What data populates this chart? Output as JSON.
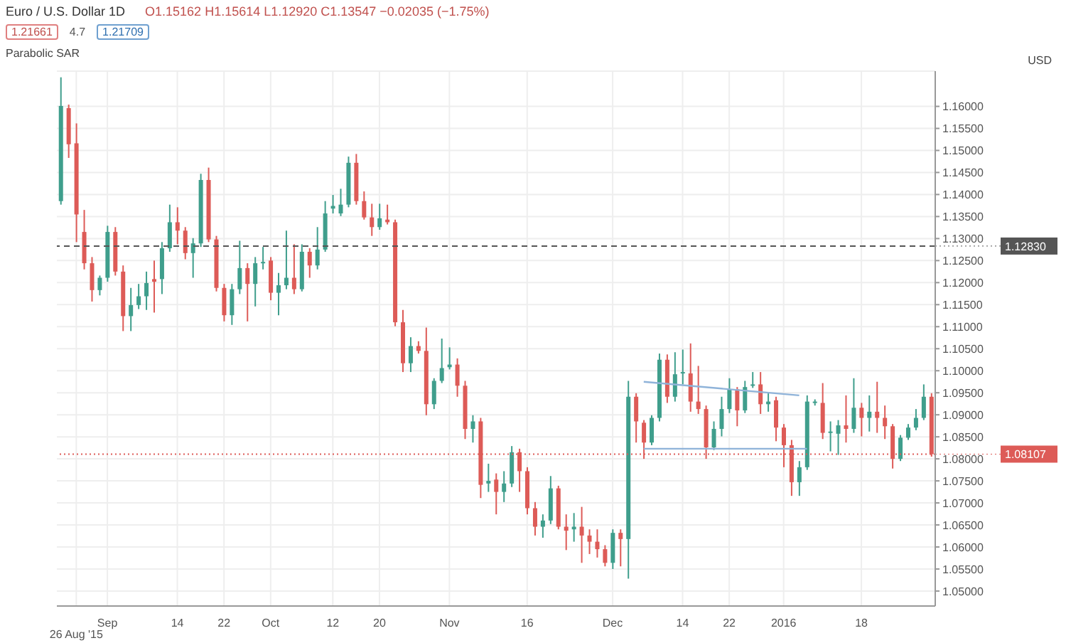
{
  "chart_data": {
    "type": "candlestick",
    "title": "Euro / U.S. Dollar  1D",
    "subtitle": "O1.15162 H1.15614 L1.12920 C1.13547 −0.02035 (−1.75%)",
    "annotations": [
      "1.21661",
      "4.7",
      "1.21709",
      "Parabolic SAR"
    ],
    "ylabel": "USD",
    "categories": [
      null,
      null,
      "26 Aug '15",
      null,
      null,
      null,
      "Sep",
      null,
      null,
      null,
      null,
      null,
      null,
      null,
      null,
      "14",
      null,
      null,
      null,
      null,
      null,
      "22",
      null,
      null,
      null,
      null,
      null,
      "Oct",
      null,
      null,
      null,
      null,
      null,
      null,
      null,
      "12",
      null,
      null,
      null,
      null,
      null,
      "20",
      null,
      null,
      null,
      null,
      null,
      null,
      null,
      null,
      "Nov",
      null,
      null,
      null,
      null,
      null,
      null,
      null,
      null,
      null,
      "16",
      null,
      null,
      null,
      null,
      null,
      null,
      null,
      null,
      null,
      null,
      "Dec",
      null,
      null,
      null,
      null,
      null,
      null,
      null,
      null,
      "14",
      null,
      null,
      null,
      null,
      null,
      "22",
      null,
      null,
      null,
      null,
      null,
      null,
      "2016",
      null,
      null,
      null,
      null,
      null,
      null,
      null,
      null,
      null,
      "18",
      null,
      null,
      null,
      null,
      null,
      null,
      null,
      null,
      null
    ],
    "ohlc": [
      [
        1.1385,
        1.1666,
        1.1377,
        1.1601
      ],
      [
        1.1596,
        1.1604,
        1.1483,
        1.1514
      ],
      [
        1.15162,
        1.15614,
        1.1292,
        1.13547
      ],
      [
        1.1315,
        1.1365,
        1.123,
        1.1244
      ],
      [
        1.1244,
        1.1258,
        1.1157,
        1.1183
      ],
      [
        1.1183,
        1.1216,
        1.1171,
        1.1211
      ],
      [
        1.1211,
        1.1329,
        1.1202,
        1.1315
      ],
      [
        1.1315,
        1.1326,
        1.1216,
        1.1225
      ],
      [
        1.1225,
        1.1239,
        1.109,
        1.1124
      ],
      [
        1.1124,
        1.1188,
        1.109,
        1.1149
      ],
      [
        1.1149,
        1.1197,
        1.114,
        1.1169
      ],
      [
        1.1169,
        1.1225,
        1.1138,
        1.1199
      ],
      [
        1.1208,
        1.125,
        1.1132,
        1.1202
      ],
      [
        1.1208,
        1.1292,
        1.1174,
        1.1278
      ],
      [
        1.1278,
        1.1377,
        1.127,
        1.1337
      ],
      [
        1.1337,
        1.1371,
        1.1287,
        1.1318
      ],
      [
        1.1318,
        1.1326,
        1.1253,
        1.1267
      ],
      [
        1.1267,
        1.1301,
        1.1211,
        1.1289
      ],
      [
        1.1289,
        1.1447,
        1.1281,
        1.1433
      ],
      [
        1.1433,
        1.1461,
        1.1292,
        1.1298
      ],
      [
        1.1298,
        1.1306,
        1.118,
        1.1188
      ],
      [
        1.1188,
        1.1197,
        1.1112,
        1.1126
      ],
      [
        1.1126,
        1.1197,
        1.1104,
        1.1185
      ],
      [
        1.1185,
        1.1295,
        1.1174,
        1.1233
      ],
      [
        1.1233,
        1.1244,
        1.1112,
        1.1197
      ],
      [
        1.1197,
        1.1258,
        1.1146,
        1.1244
      ],
      [
        1.1244,
        1.1281,
        1.123,
        1.1247
      ],
      [
        1.125,
        1.1258,
        1.116,
        1.1177
      ],
      [
        1.1177,
        1.1222,
        1.1126,
        1.1194
      ],
      [
        1.1194,
        1.1318,
        1.1185,
        1.1211
      ],
      [
        1.1211,
        1.1287,
        1.1174,
        1.1185
      ],
      [
        1.1185,
        1.1287,
        1.118,
        1.127
      ],
      [
        1.127,
        1.1278,
        1.1211,
        1.1239
      ],
      [
        1.1239,
        1.1326,
        1.123,
        1.1275
      ],
      [
        1.1275,
        1.1385,
        1.127,
        1.1357
      ],
      [
        1.1368,
        1.1399,
        1.1357,
        1.1374
      ],
      [
        1.1357,
        1.1413,
        1.1351,
        1.1377
      ],
      [
        1.1377,
        1.1486,
        1.1371,
        1.1472
      ],
      [
        1.1472,
        1.1492,
        1.1377,
        1.1385
      ],
      [
        1.1385,
        1.1407,
        1.1343,
        1.1348
      ],
      [
        1.1348,
        1.1379,
        1.1306,
        1.1326
      ],
      [
        1.1326,
        1.1379,
        1.132,
        1.1346
      ],
      [
        1.1343,
        1.1377,
        1.1332,
        1.1337
      ],
      [
        1.1337,
        1.1343,
        1.1101,
        1.111
      ],
      [
        1.111,
        1.1138,
        1.0997,
        1.1017
      ],
      [
        1.1017,
        1.1076,
        1.0997,
        1.1056
      ],
      [
        1.1056,
        1.1067,
        1.1039,
        1.1045
      ],
      [
        1.1045,
        1.1098,
        1.0899,
        1.0924
      ],
      [
        1.0924,
        1.0983,
        1.0913,
        1.0977
      ],
      [
        1.0977,
        1.1073,
        1.0972,
        1.1006
      ],
      [
        1.1008,
        1.1053,
        1.1003,
        1.1014
      ],
      [
        1.1014,
        1.1028,
        1.0941,
        1.0966
      ],
      [
        1.0966,
        1.0977,
        1.0845,
        1.0868
      ],
      [
        1.0868,
        1.0899,
        1.0837,
        1.0885
      ],
      [
        1.0885,
        1.0893,
        1.0711,
        1.0741
      ],
      [
        1.0744,
        1.0789,
        1.0725,
        1.075
      ],
      [
        1.0753,
        1.0767,
        1.0674,
        1.0725
      ],
      [
        1.0725,
        1.0772,
        1.0702,
        1.0744
      ],
      [
        1.0744,
        1.0829,
        1.0736,
        1.0815
      ],
      [
        1.0815,
        1.0823,
        1.0725,
        1.0772
      ],
      [
        1.0772,
        1.0781,
        1.0674,
        1.0688
      ],
      [
        1.0688,
        1.0702,
        1.0626,
        1.0646
      ],
      [
        1.0646,
        1.0674,
        1.0621,
        1.066
      ],
      [
        1.066,
        1.0761,
        1.0652,
        1.0733
      ],
      [
        1.0733,
        1.0739,
        1.064,
        1.0646
      ],
      [
        1.0646,
        1.0674,
        1.0593,
        1.0637
      ],
      [
        1.064,
        1.0677,
        1.0612,
        1.0646
      ],
      [
        1.0646,
        1.0691,
        1.0564,
        1.0626
      ],
      [
        1.0626,
        1.064,
        1.0584,
        1.0612
      ],
      [
        1.0612,
        1.064,
        1.0576,
        1.0595
      ],
      [
        1.0595,
        1.0604,
        1.0556,
        1.0564
      ],
      [
        1.0564,
        1.064,
        1.055,
        1.0632
      ],
      [
        1.0632,
        1.064,
        1.0556,
        1.0618
      ],
      [
        1.0618,
        1.0977,
        1.0528,
        1.0941
      ],
      [
        1.0941,
        1.0949,
        1.0837,
        1.0885
      ],
      [
        1.0882,
        1.0888,
        1.08,
        1.0837
      ],
      [
        1.0837,
        1.0899,
        1.0831,
        1.0893
      ],
      [
        1.0893,
        1.1039,
        1.0885,
        1.1025
      ],
      [
        1.1025,
        1.1037,
        1.0927,
        1.0941
      ],
      [
        1.0941,
        1.1042,
        1.093,
        1.0992
      ],
      [
        1.0994,
        1.1048,
        1.0969,
        1.0997
      ],
      [
        1.0994,
        1.1062,
        1.0907,
        1.093
      ],
      [
        1.093,
        1.1011,
        1.0902,
        1.0913
      ],
      [
        1.0913,
        1.0921,
        1.08,
        1.0826
      ],
      [
        1.0826,
        1.0885,
        1.082,
        1.0868
      ],
      [
        1.0868,
        1.0941,
        1.0851,
        1.0913
      ],
      [
        1.0913,
        1.0983,
        1.0904,
        1.0958
      ],
      [
        1.0958,
        1.0963,
        1.0874,
        1.091
      ],
      [
        1.091,
        1.0977,
        1.0904,
        1.0963
      ],
      [
        1.0966,
        1.0997,
        1.0961,
        1.0969
      ],
      [
        1.0969,
        1.0997,
        1.0902,
        1.0924
      ],
      [
        1.0924,
        1.0949,
        1.0907,
        1.093
      ],
      [
        1.0933,
        1.0941,
        1.084,
        1.0871
      ],
      [
        1.0871,
        1.0879,
        1.0781,
        1.0831
      ],
      [
        1.0831,
        1.0843,
        1.0716,
        1.0747
      ],
      [
        1.0747,
        1.0795,
        1.0716,
        1.0781
      ],
      [
        1.0781,
        1.0944,
        1.0775,
        1.093
      ],
      [
        1.0927,
        1.0935,
        1.0921,
        1.093
      ],
      [
        1.0927,
        1.0972,
        1.0845,
        1.0859
      ],
      [
        1.0859,
        1.0885,
        1.0817,
        1.0862
      ],
      [
        1.0857,
        1.0888,
        1.0809,
        1.0876
      ],
      [
        1.0876,
        1.0944,
        1.0837,
        1.0868
      ],
      [
        1.0868,
        1.0983,
        1.0859,
        1.0916
      ],
      [
        1.0916,
        1.0927,
        1.0851,
        1.0893
      ],
      [
        1.0893,
        1.0944,
        1.0862,
        1.0907
      ],
      [
        1.0907,
        1.0975,
        1.0859,
        1.0893
      ],
      [
        1.0893,
        1.0921,
        1.0845,
        1.0874
      ],
      [
        1.0874,
        1.0879,
        1.0778,
        1.08
      ],
      [
        1.08,
        1.0854,
        1.0795,
        1.0848
      ],
      [
        1.0848,
        1.0879,
        1.0843,
        1.0871
      ],
      [
        1.0871,
        1.0913,
        1.0865,
        1.0893
      ],
      [
        1.0893,
        1.0969,
        1.0888,
        1.0941
      ],
      [
        1.0941,
        1.0949,
        1.0805,
        1.08107
      ]
    ],
    "colors": [
      "#3f9e8c",
      "#dd5b57",
      "#dd5b57",
      "#dd5b57",
      "#dd5b57",
      "#3f9e8c",
      "#3f9e8c",
      "#dd5b57",
      "#dd5b57",
      "#3f9e8c",
      "#3f9e8c",
      "#3f9e8c",
      "#dd5b57",
      "#3f9e8c",
      "#3f9e8c",
      "#dd5b57",
      "#dd5b57",
      "#3f9e8c",
      "#3f9e8c",
      "#dd5b57",
      "#dd5b57",
      "#dd5b57",
      "#3f9e8c",
      "#3f9e8c",
      "#dd5b57",
      "#3f9e8c",
      "#3f9e8c",
      "#dd5b57",
      "#3f9e8c",
      "#3f9e8c",
      "#dd5b57",
      "#3f9e8c",
      "#dd5b57",
      "#3f9e8c",
      "#3f9e8c",
      "#3f9e8c",
      "#3f9e8c",
      "#3f9e8c",
      "#dd5b57",
      "#dd5b57",
      "#dd5b57",
      "#3f9e8c",
      "#dd5b57",
      "#dd5b57",
      "#dd5b57",
      "#3f9e8c",
      "#dd5b57",
      "#dd5b57",
      "#3f9e8c",
      "#3f9e8c",
      "#3f9e8c",
      "#dd5b57",
      "#dd5b57",
      "#3f9e8c",
      "#dd5b57",
      "#3f9e8c",
      "#dd5b57",
      "#3f9e8c",
      "#3f9e8c",
      "#dd5b57",
      "#dd5b57",
      "#dd5b57",
      "#3f9e8c",
      "#3f9e8c",
      "#dd5b57",
      "#dd5b57",
      "#3f9e8c",
      "#dd5b57",
      "#dd5b57",
      "#dd5b57",
      "#dd5b57",
      "#3f9e8c",
      "#dd5b57",
      "#3f9e8c",
      "#dd5b57",
      "#dd5b57",
      "#3f9e8c",
      "#3f9e8c",
      "#dd5b57",
      "#3f9e8c",
      "#3f9e8c",
      "#dd5b57",
      "#dd5b57",
      "#dd5b57",
      "#3f9e8c",
      "#3f9e8c",
      "#3f9e8c",
      "#dd5b57",
      "#3f9e8c",
      "#3f9e8c",
      "#dd5b57",
      "#3f9e8c",
      "#dd5b57",
      "#dd5b57",
      "#dd5b57",
      "#3f9e8c",
      "#3f9e8c",
      "#3f9e8c",
      "#dd5b57",
      "#3f9e8c",
      "#3f9e8c",
      "#dd5b57",
      "#3f9e8c",
      "#dd5b57",
      "#3f9e8c",
      "#dd5b57",
      "#dd5b57",
      "#dd5b57",
      "#3f9e8c",
      "#3f9e8c",
      "#3f9e8c",
      "#3f9e8c",
      "#dd5b57"
    ],
    "series": [
      {
        "type": "line",
        "color": "#8fb3d9",
        "values": [
          null,
          null,
          null,
          null,
          null,
          null,
          null,
          null,
          null,
          null,
          null,
          null,
          null,
          null,
          null,
          null,
          null,
          null,
          null,
          null,
          null,
          null,
          null,
          null,
          null,
          null,
          null,
          null,
          null,
          null,
          null,
          null,
          null,
          null,
          null,
          null,
          null,
          null,
          null,
          null,
          null,
          null,
          null,
          null,
          null,
          null,
          null,
          null,
          null,
          null,
          null,
          null,
          null,
          null,
          null,
          null,
          null,
          null,
          null,
          null,
          null,
          null,
          null,
          null,
          null,
          null,
          null,
          null,
          null,
          null,
          null,
          null,
          null,
          null,
          null,
          1.0975,
          null,
          null,
          null,
          null,
          null,
          null,
          null,
          null,
          null,
          null,
          null,
          null,
          null,
          null,
          null,
          null,
          null,
          null,
          null,
          1.0944,
          null,
          null,
          null,
          null,
          null,
          null,
          null,
          null,
          null,
          null,
          null,
          null,
          null,
          null,
          null,
          null,
          null
        ]
      },
      {
        "type": "line",
        "color": "#8fb3d9",
        "values": [
          null,
          null,
          null,
          null,
          null,
          null,
          null,
          null,
          null,
          null,
          null,
          null,
          null,
          null,
          null,
          null,
          null,
          null,
          null,
          null,
          null,
          null,
          null,
          null,
          null,
          null,
          null,
          null,
          null,
          null,
          null,
          null,
          null,
          null,
          null,
          null,
          null,
          null,
          null,
          null,
          null,
          null,
          null,
          null,
          null,
          null,
          null,
          null,
          null,
          null,
          null,
          null,
          null,
          null,
          null,
          null,
          null,
          null,
          null,
          null,
          null,
          null,
          null,
          null,
          null,
          null,
          null,
          null,
          null,
          null,
          null,
          null,
          null,
          null,
          null,
          1.0823,
          null,
          null,
          null,
          null,
          null,
          null,
          null,
          null,
          null,
          null,
          null,
          null,
          null,
          null,
          null,
          null,
          null,
          null,
          null,
          null,
          1.0823,
          null,
          null,
          null,
          null,
          null,
          null,
          null,
          null,
          null,
          null,
          null,
          null,
          null,
          null,
          null,
          null
        ]
      }
    ],
    "ylim": [
      1.0466,
      1.168
    ],
    "yticks": [
      {
        "value": 1.05,
        "label": "1.05000"
      },
      {
        "value": 1.055,
        "label": "1.05500"
      },
      {
        "value": 1.06,
        "label": "1.06000"
      },
      {
        "value": 1.065,
        "label": "1.06500"
      },
      {
        "value": 1.07,
        "label": "1.07000"
      },
      {
        "value": 1.075,
        "label": "1.07500"
      },
      {
        "value": 1.08,
        "label": "1.08000"
      },
      {
        "value": 1.085,
        "label": "1.08500"
      },
      {
        "value": 1.09,
        "label": "1.09000"
      },
      {
        "value": 1.095,
        "label": "1.09500"
      },
      {
        "value": 1.1,
        "label": "1.10000"
      },
      {
        "value": 1.105,
        "label": "1.10500"
      },
      {
        "value": 1.11,
        "label": "1.11000"
      },
      {
        "value": 1.115,
        "label": "1.11500"
      },
      {
        "value": 1.12,
        "label": "1.12000"
      },
      {
        "value": 1.125,
        "label": "1.12500"
      },
      {
        "value": 1.13,
        "label": "1.13000"
      },
      {
        "value": 1.135,
        "label": "1.13500"
      },
      {
        "value": 1.14,
        "label": "1.14000"
      },
      {
        "value": 1.145,
        "label": "1.14500"
      },
      {
        "value": 1.15,
        "label": "1.15000"
      },
      {
        "value": 1.155,
        "label": "1.15500"
      },
      {
        "value": 1.16,
        "label": "1.16000"
      }
    ],
    "grid": true,
    "ref_lines": [
      {
        "axis": "y",
        "value": 1.1283,
        "label": "1.12830",
        "line_style": "dashed",
        "color": "#555555"
      },
      {
        "axis": "y",
        "value": 1.08107,
        "label": "1.08107",
        "line_style": "dotted",
        "color": "#dd5b57"
      }
    ]
  }
}
